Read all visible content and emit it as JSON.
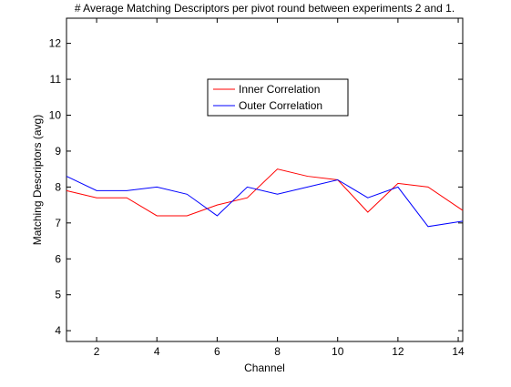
{
  "chart_data": {
    "type": "line",
    "title": "# Average Matching Descriptors per pivot round between experiments 2 and 1.",
    "xlabel": "Channel",
    "ylabel": "Matching Descriptors (avg)",
    "xlim": [
      1,
      14.15
    ],
    "ylim": [
      3.7,
      12.7
    ],
    "xticks": [
      2,
      4,
      6,
      8,
      10,
      12,
      14
    ],
    "yticks": [
      4,
      5,
      6,
      7,
      8,
      9,
      10,
      11,
      12
    ],
    "grid": false,
    "legend_position": "top-center",
    "x": [
      1,
      2,
      3,
      4,
      5,
      6,
      7,
      8,
      9,
      10,
      11,
      12,
      13,
      14.15
    ],
    "series": [
      {
        "name": "Inner Correlation",
        "color": "#ff0000",
        "values": [
          7.9,
          7.7,
          7.7,
          7.2,
          7.2,
          7.5,
          7.7,
          8.5,
          8.3,
          8.2,
          7.3,
          8.1,
          8.0,
          7.35
        ]
      },
      {
        "name": "Outer Correlation",
        "color": "#0000ff",
        "values": [
          8.3,
          7.9,
          7.9,
          8.0,
          7.8,
          7.2,
          8.0,
          7.8,
          8.0,
          8.2,
          7.7,
          8.0,
          6.9,
          7.05
        ]
      }
    ]
  }
}
